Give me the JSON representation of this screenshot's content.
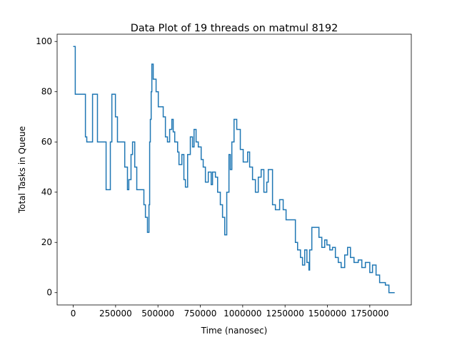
{
  "chart_data": {
    "type": "line",
    "drawstyle": "steps-post",
    "title": "Data Plot of 19 threads on matmul 8192",
    "xlabel": "Time (nanosec)",
    "ylabel": "Total Tasks in Queue",
    "color": "#1f77b4",
    "x": [
      0,
      12000,
      63000,
      72000,
      80000,
      100000,
      114000,
      126000,
      143000,
      181000,
      194000,
      207000,
      219000,
      228000,
      236000,
      249000,
      261000,
      287000,
      304000,
      320000,
      328000,
      341000,
      350000,
      363000,
      375000,
      409000,
      417000,
      426000,
      438000,
      447000,
      451000,
      455000,
      460000,
      464000,
      472000,
      489000,
      502000,
      523000,
      531000,
      544000,
      556000,
      569000,
      582000,
      590000,
      599000,
      616000,
      624000,
      641000,
      653000,
      662000,
      675000,
      691000,
      704000,
      713000,
      725000,
      738000,
      755000,
      767000,
      780000,
      797000,
      814000,
      822000,
      839000,
      852000,
      868000,
      881000,
      894000,
      906000,
      919000,
      927000,
      936000,
      949000,
      965000,
      986000,
      1003000,
      1029000,
      1041000,
      1058000,
      1075000,
      1092000,
      1109000,
      1125000,
      1142000,
      1151000,
      1176000,
      1193000,
      1218000,
      1239000,
      1256000,
      1286000,
      1311000,
      1324000,
      1341000,
      1353000,
      1366000,
      1379000,
      1391000,
      1395000,
      1408000,
      1433000,
      1450000,
      1467000,
      1484000,
      1497000,
      1514000,
      1530000,
      1547000,
      1564000,
      1581000,
      1602000,
      1619000,
      1636000,
      1657000,
      1682000,
      1703000,
      1724000,
      1750000,
      1766000,
      1787000,
      1808000,
      1842000,
      1863000,
      1897000
    ],
    "values": [
      98,
      79,
      79,
      62,
      60,
      60,
      79,
      79,
      60,
      60,
      41,
      41,
      60,
      79,
      79,
      70,
      60,
      60,
      50,
      41,
      45,
      55,
      60,
      50,
      41,
      41,
      35,
      30,
      24,
      35,
      60,
      69,
      80,
      91,
      85,
      80,
      74,
      74,
      70,
      62,
      60,
      65,
      69,
      64,
      60,
      56,
      51,
      55,
      45,
      42,
      55,
      62,
      58,
      65,
      60,
      58,
      53,
      50,
      44,
      48,
      43,
      48,
      46,
      40,
      35,
      30,
      23,
      40,
      55,
      49,
      60,
      69,
      65,
      57,
      52,
      56,
      50,
      45,
      40,
      46,
      49,
      40,
      44,
      49,
      35,
      33,
      37,
      33,
      29,
      29,
      20,
      17,
      14,
      11,
      17,
      12,
      9,
      17,
      26,
      26,
      22,
      18,
      21,
      19,
      17,
      18,
      14,
      12,
      10,
      15,
      18,
      14,
      12,
      13,
      10,
      12,
      8,
      11,
      7,
      4,
      3,
      0,
      0
    ],
    "xlim": [
      -95000,
      1995000
    ],
    "ylim": [
      -4.9,
      102.9
    ],
    "xticks": [
      0,
      250000,
      500000,
      750000,
      1000000,
      1250000,
      1500000,
      1750000
    ],
    "yticks": [
      0,
      20,
      40,
      60,
      80,
      100
    ]
  }
}
